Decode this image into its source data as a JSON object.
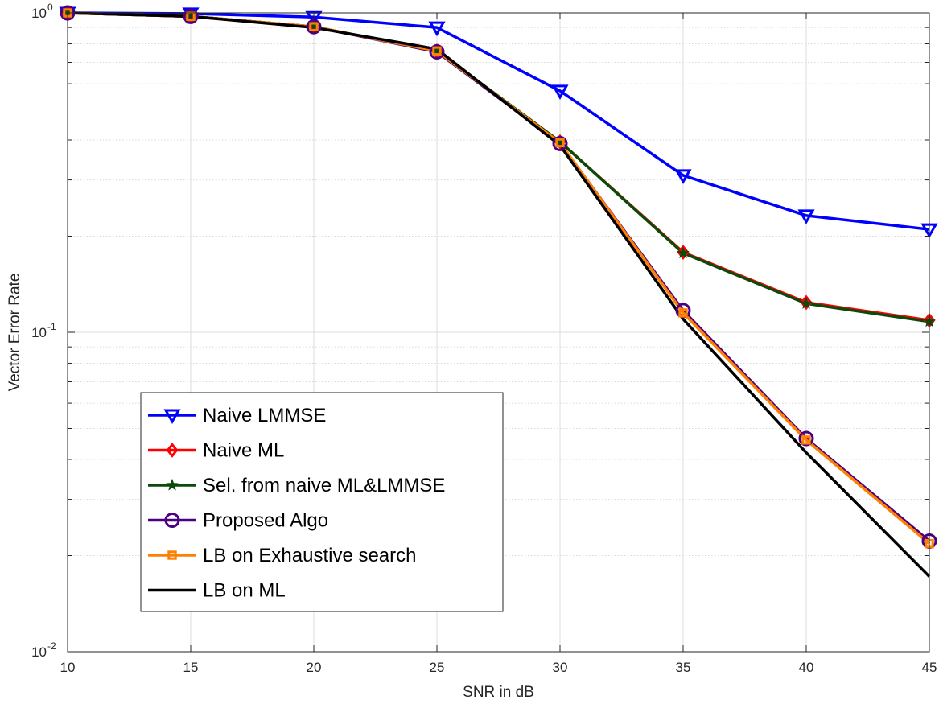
{
  "chart_data": {
    "type": "line",
    "xlabel": "SNR in dB",
    "ylabel": "Vector Error Rate",
    "xlim": [
      10,
      45
    ],
    "ylim": [
      0.01,
      1
    ],
    "yscale": "log",
    "grid": true,
    "legend_placement": "lower-left",
    "x_ticks": [
      "10",
      "15",
      "20",
      "25",
      "30",
      "35",
      "40",
      "45"
    ],
    "y_ticks": [
      {
        "base": "10",
        "exp": "-2"
      },
      {
        "base": "10",
        "exp": "-1"
      },
      {
        "base": "10",
        "exp": "0"
      }
    ],
    "x": [
      10,
      15,
      20,
      25,
      30,
      35,
      40,
      45
    ],
    "series": [
      {
        "name": "Naive LMMSE",
        "color": "#0000ff",
        "marker": "triangle-down",
        "values": [
          1.0,
          0.995,
          0.97,
          0.9,
          0.57,
          0.31,
          0.232,
          0.21
        ]
      },
      {
        "name": "Naive ML",
        "color": "#ff0000",
        "marker": "diamond",
        "values": [
          1.0,
          0.975,
          0.905,
          0.76,
          0.395,
          0.178,
          0.124,
          0.109
        ]
      },
      {
        "name": "Sel. from naive ML&LMMSE",
        "color": "#0b4a0b",
        "marker": "star",
        "values": [
          1.0,
          0.975,
          0.905,
          0.76,
          0.395,
          0.177,
          0.123,
          0.108
        ]
      },
      {
        "name": "Proposed Algo",
        "color": "#4b0082",
        "marker": "circle",
        "values": [
          1.0,
          0.975,
          0.905,
          0.755,
          0.39,
          0.117,
          0.0465,
          0.0222
        ]
      },
      {
        "name": "LB on Exhaustive search",
        "color": "#ff8000",
        "marker": "square",
        "values": [
          1.0,
          0.975,
          0.905,
          0.76,
          0.392,
          0.115,
          0.046,
          0.0218
        ]
      },
      {
        "name": "LB on ML",
        "color": "#000000",
        "marker": "none",
        "values": [
          1.0,
          0.975,
          0.9,
          0.77,
          0.385,
          0.11,
          0.042,
          0.0172
        ]
      }
    ]
  }
}
